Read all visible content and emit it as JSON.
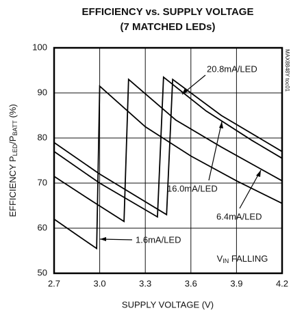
{
  "chart_data": {
    "type": "line",
    "title": "EFFICIENCY vs. SUPPLY VOLTAGE",
    "subtitle": "(7 MATCHED LEDs)",
    "ylabel_parts": [
      "EFFICIENCY P",
      "LED",
      "/P",
      "BATT",
      " (%)"
    ],
    "xlabel": "SUPPLY VOLTAGE (V)",
    "note_parts": [
      "V",
      "IN",
      " FALLING"
    ],
    "code": "MAX8848Y toc01",
    "xlim": [
      2.7,
      4.2
    ],
    "xticks": [
      2.7,
      {
        "value": 3,
        "label": "3.0"
      },
      3.3,
      3.6,
      3.9,
      4.2
    ],
    "ylim": [
      50,
      100
    ],
    "yticks": [
      50,
      60,
      70,
      80,
      90,
      100
    ],
    "grid": true,
    "series": [
      {
        "name": "1.6mA/LED",
        "color": "#000000",
        "x": [
          2.7,
          2.85,
          2.98,
          3.0,
          3.3,
          3.6,
          3.9,
          4.2
        ],
        "values": [
          62,
          58.5,
          55.5,
          91.5,
          82.5,
          76,
          70.5,
          65.5
        ]
      },
      {
        "name": "6.4mA/LED",
        "color": "#000000",
        "x": [
          2.7,
          2.95,
          3.16,
          3.19,
          3.5,
          3.8,
          4.2
        ],
        "values": [
          71.5,
          66,
          61.5,
          93,
          84,
          78,
          70.5
        ]
      },
      {
        "name": "16.0mA/LED",
        "color": "#000000",
        "x": [
          2.7,
          3.0,
          3.38,
          3.42,
          3.7,
          4.0,
          4.2
        ],
        "values": [
          77,
          70,
          62.5,
          93.5,
          86,
          79.5,
          75.5
        ]
      },
      {
        "name": "20.8mA/LED",
        "color": "#000000",
        "x": [
          2.7,
          3.0,
          3.44,
          3.48,
          3.8,
          4.2
        ],
        "values": [
          79,
          72,
          63,
          93,
          85,
          77
        ]
      }
    ]
  }
}
